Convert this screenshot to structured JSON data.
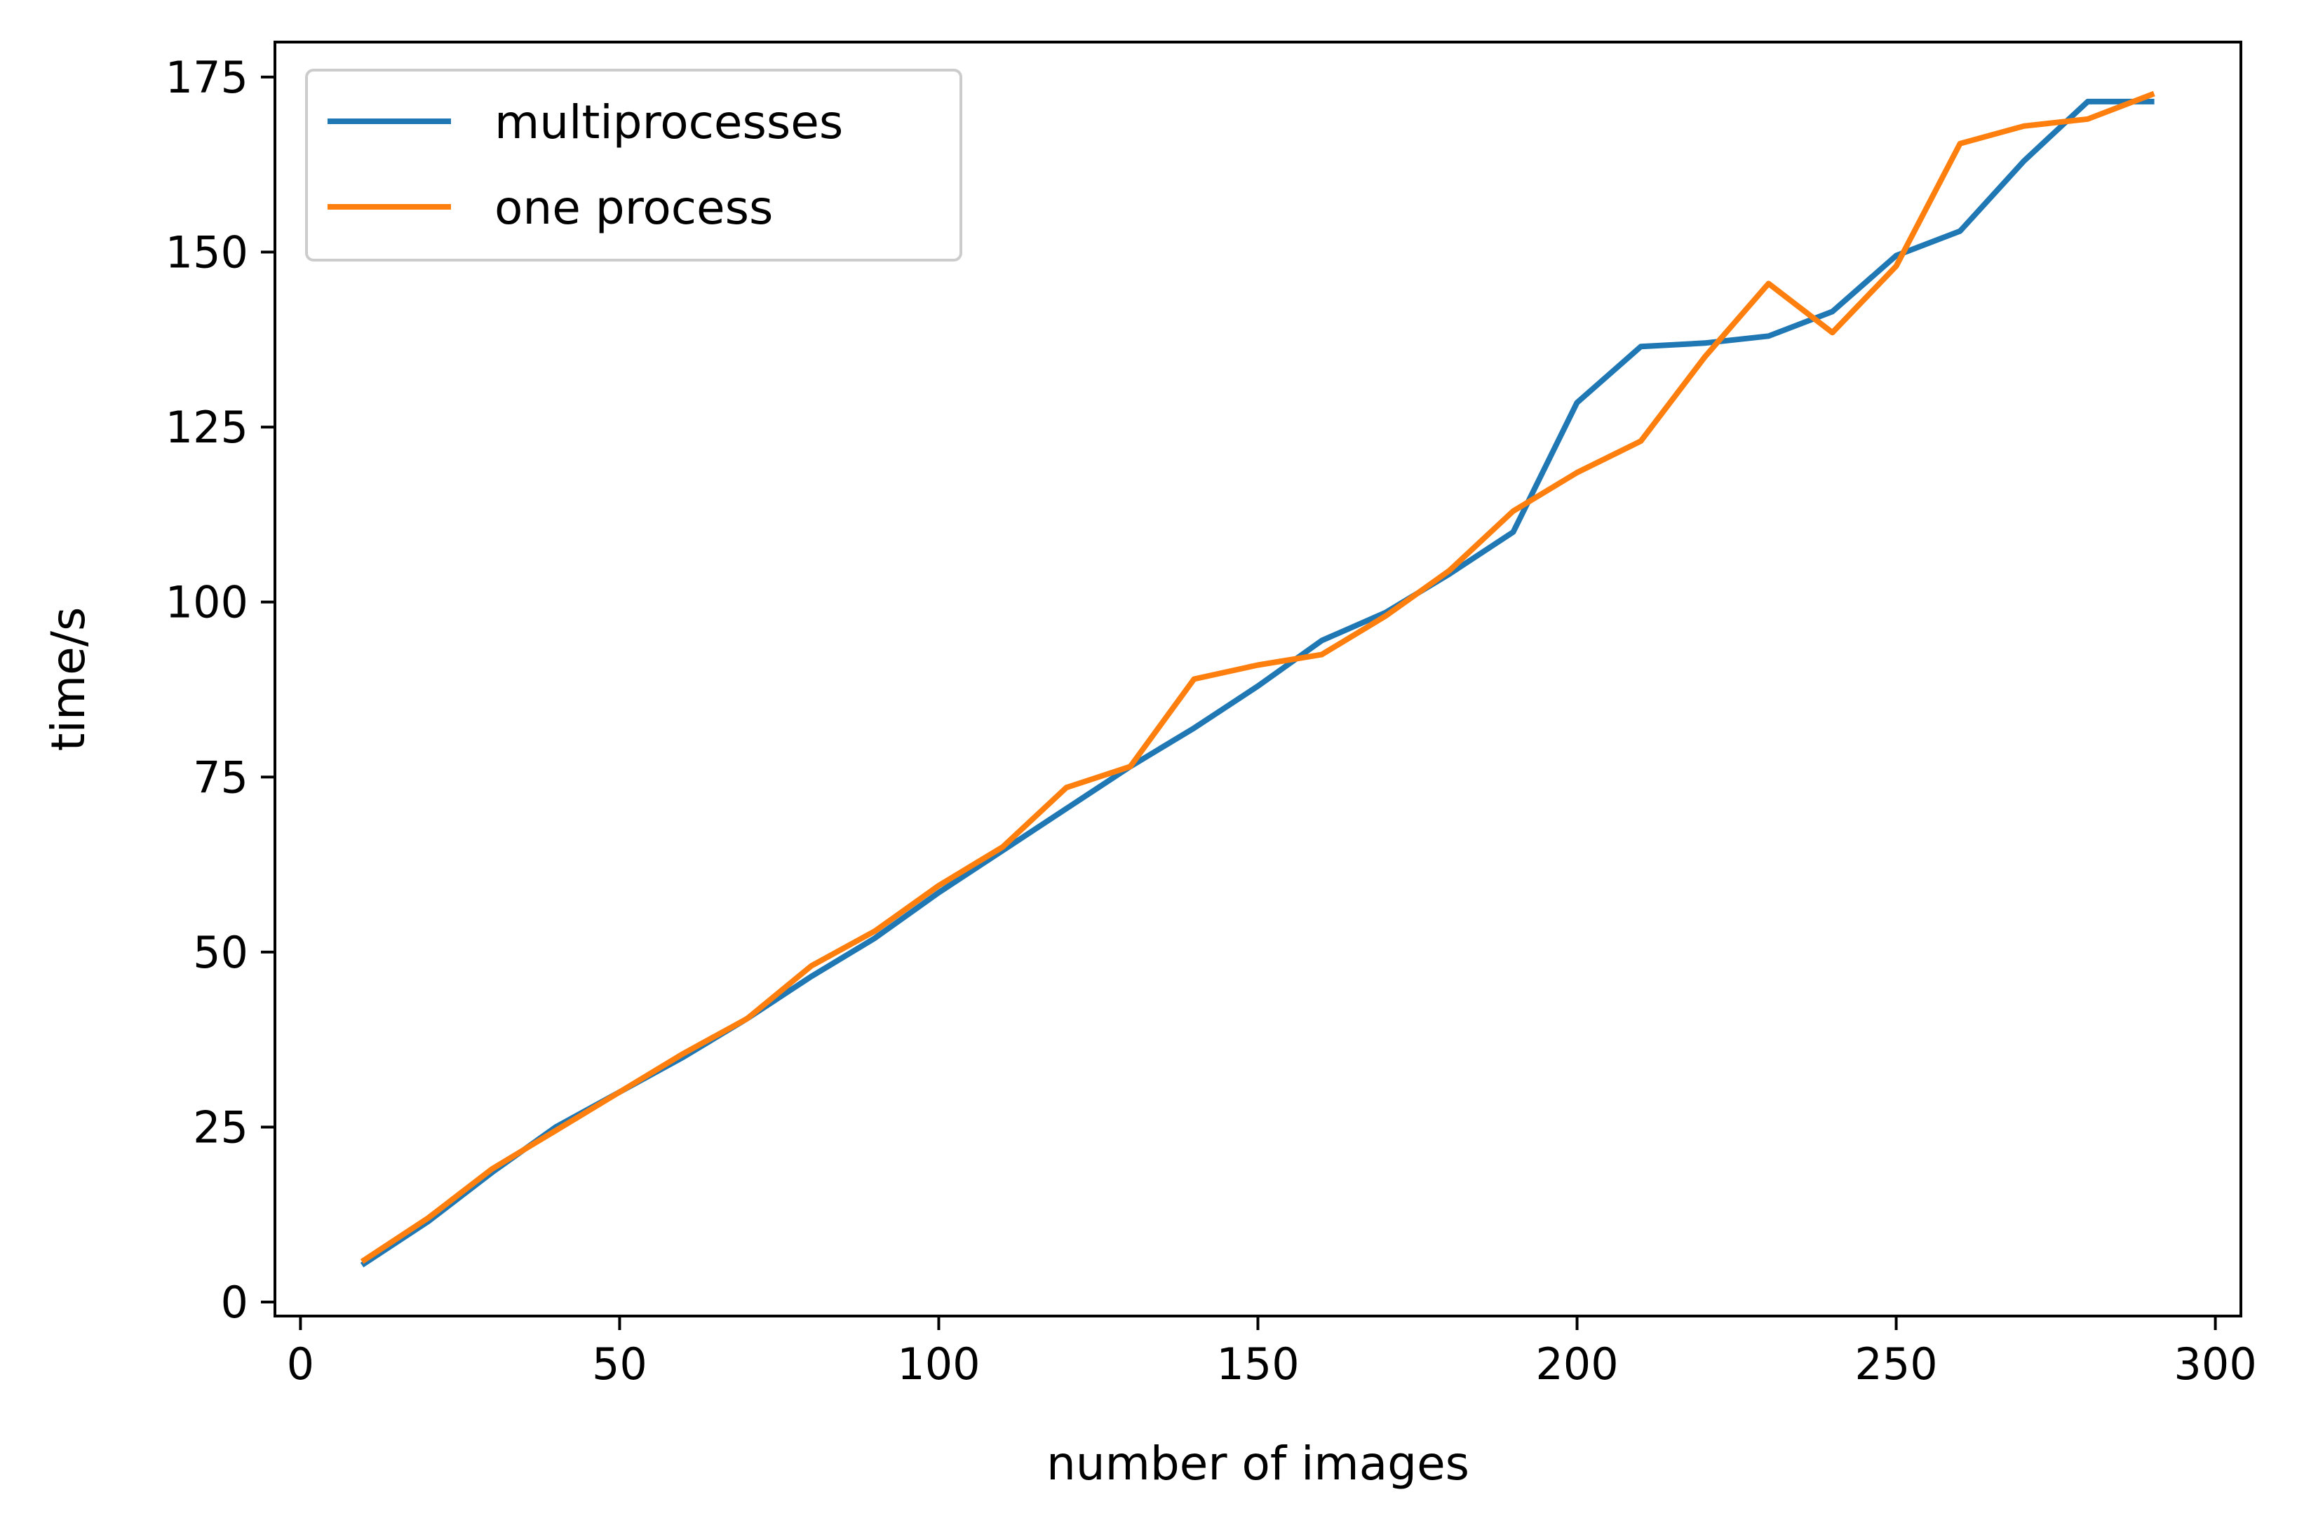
{
  "chart_data": {
    "type": "line",
    "title": "",
    "xlabel": "number of images",
    "ylabel": "time/s",
    "xlim": [
      -4,
      304
    ],
    "ylim": [
      -2,
      180
    ],
    "xticks": [
      0,
      50,
      100,
      150,
      200,
      250,
      300
    ],
    "yticks": [
      0,
      25,
      50,
      75,
      100,
      125,
      150,
      175
    ],
    "grid": false,
    "legend_position": "top-left",
    "x": [
      10,
      20,
      30,
      40,
      50,
      60,
      70,
      80,
      90,
      100,
      110,
      120,
      130,
      140,
      150,
      160,
      170,
      180,
      190,
      200,
      210,
      220,
      230,
      240,
      250,
      260,
      270,
      280,
      290
    ],
    "series": [
      {
        "name": "multiprocesses",
        "color": "#1f77b4",
        "values": [
          5.5,
          11.5,
          18.5,
          25,
          30,
          35,
          40.5,
          46.5,
          52,
          58.5,
          64.5,
          70.5,
          76.5,
          82,
          88,
          94.5,
          98.5,
          104,
          110,
          128.5,
          136.5,
          137,
          138,
          141.5,
          149.5,
          153,
          163,
          171.5,
          171.5
        ]
      },
      {
        "name": "one process",
        "color": "#ff7f0e",
        "values": [
          6,
          12,
          19,
          24.5,
          30,
          35.5,
          40.5,
          48,
          53,
          59.5,
          65,
          73.5,
          76.5,
          89,
          91,
          92.5,
          98,
          104.5,
          113,
          118.5,
          123,
          135,
          145.5,
          138.5,
          148,
          165.5,
          168,
          169,
          172.5
        ]
      }
    ]
  }
}
